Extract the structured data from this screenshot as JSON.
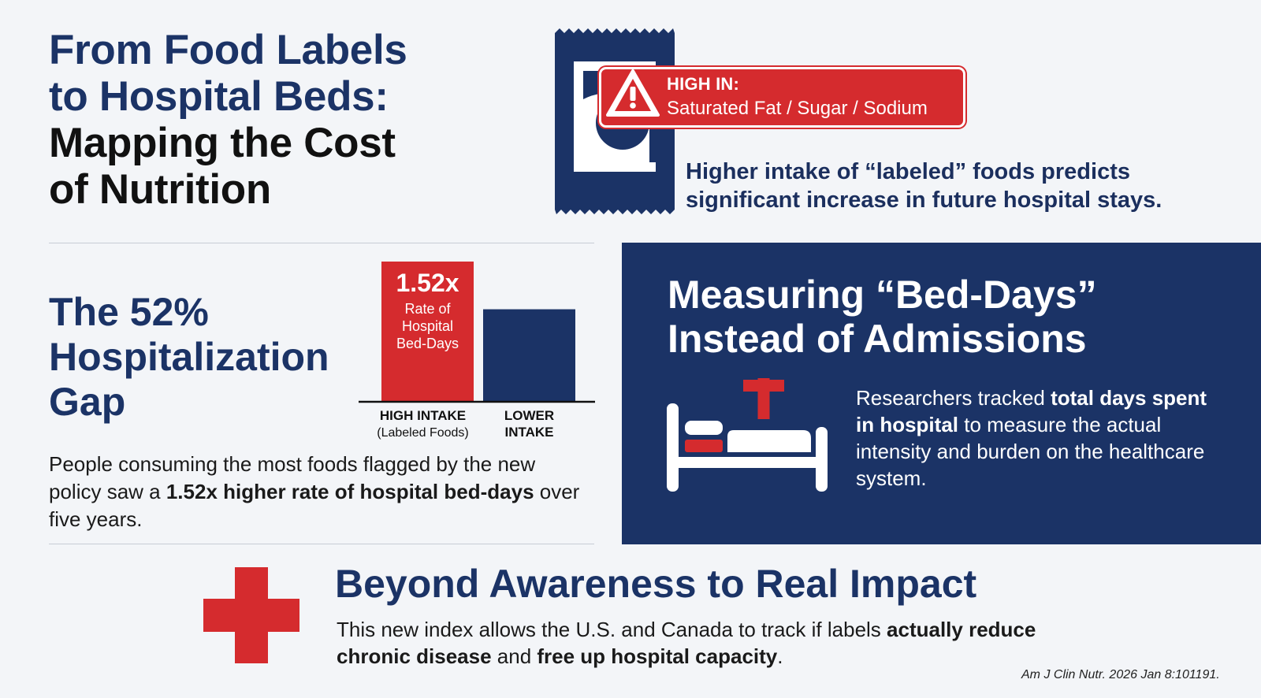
{
  "title": {
    "line1": "From Food Labels",
    "line2": "to Hospital Beds:",
    "line3": "Mapping the Cost",
    "line4": "of Nutrition"
  },
  "warning_label": {
    "heading": "HIGH IN:",
    "items": "Saturated Fat / Sugar / Sodium"
  },
  "label_finding": {
    "line1": "Higher intake of “labeled” foods predicts",
    "line2": "significant increase in future hospital stays."
  },
  "gap": {
    "title_line1": "The 52%",
    "title_line2": "Hospitalization",
    "title_line3": "Gap",
    "text_before": "People consuming the most foods flagged by the new policy saw a ",
    "text_bold": "1.52x higher rate of hospital bed-days",
    "text_after": " over five years."
  },
  "chart_data": {
    "type": "bar",
    "categories": [
      "HIGH INTAKE (Labeled Foods)",
      "LOWER INTAKE"
    ],
    "category_lines": [
      [
        "HIGH INTAKE",
        "(Labeled Foods)"
      ],
      [
        "LOWER",
        "INTAKE"
      ]
    ],
    "values": [
      1.52,
      1.0
    ],
    "bar_label_value": "1.52x",
    "bar_label_lines": [
      "Rate of",
      "Hospital",
      "Bed-Days"
    ],
    "colors": [
      "#d52b2e",
      "#1b3366"
    ],
    "ylim": [
      0,
      1.52
    ],
    "title": "",
    "xlabel": "",
    "ylabel": ""
  },
  "bed_days": {
    "title_line1": "Measuring “Bed-Days”",
    "title_line2": "Instead of Admissions",
    "text_before": "Researchers tracked ",
    "text_bold": "total days spent in hospital",
    "text_after": " to measure the actual intensity and burden on the healthcare system."
  },
  "impact": {
    "title": "Beyond Awareness to Real Impact",
    "text_1": "This new index allows the U.S. and Canada to track if labels ",
    "text_bold_1": "actually reduce chronic disease",
    "text_2": " and ",
    "text_bold_2": "free up hospital capacity",
    "text_3": "."
  },
  "citation": "Am J Clin Nutr. 2026 Jan 8:101191.",
  "colors": {
    "navy": "#1b3366",
    "red": "#d52b2e",
    "background": "#f3f5f8"
  },
  "icons": [
    "snack-package-icon",
    "warning-icon",
    "hospital-bed-icon",
    "medical-cross-icon"
  ]
}
